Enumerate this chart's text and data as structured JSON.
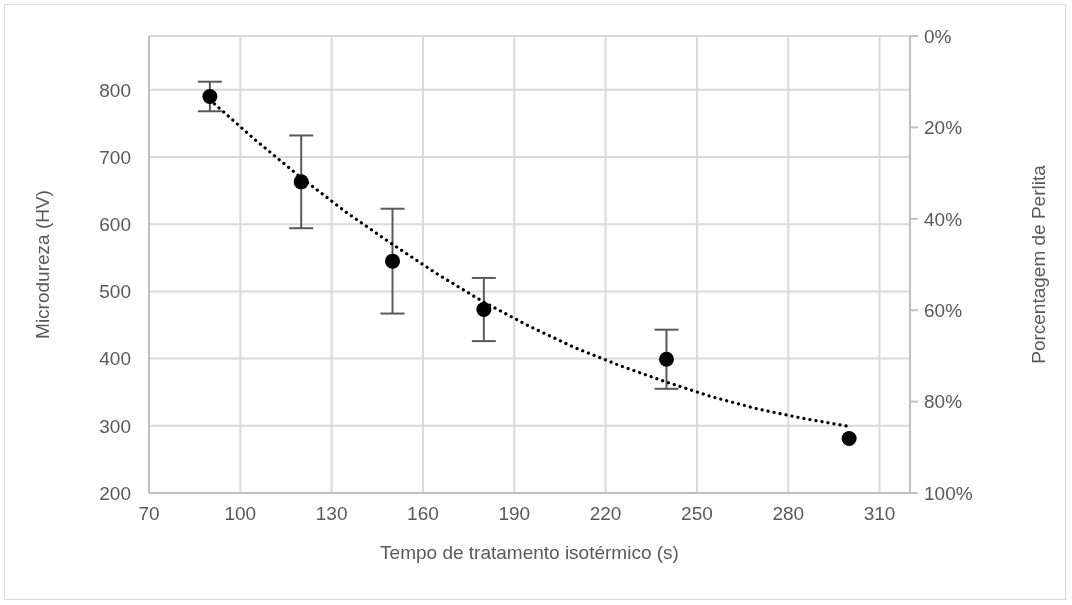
{
  "chart_data": {
    "type": "scatter",
    "xlabel": "Tempo de tratamento isotérmico (s)",
    "ylabel": "Microdureza (HV)",
    "y2label": "Porcentagem de Perlita",
    "x": [
      90,
      120,
      150,
      180,
      240,
      300
    ],
    "series": [
      {
        "type": "scatter",
        "color": "#000000",
        "marker": "circle",
        "values": [
          790,
          663,
          545,
          473,
          399,
          281
        ],
        "errors": [
          22,
          69,
          78,
          47,
          44,
          null
        ]
      },
      {
        "type": "line",
        "color": "#000000",
        "marker": "none",
        "line_style": "dotted",
        "x": [
          90,
          105,
          120,
          135,
          150,
          165,
          180,
          195,
          210,
          225,
          240,
          255,
          270,
          285,
          300
        ],
        "values": [
          785,
          725,
          669,
          617,
          570,
          525,
          484,
          448,
          416,
          389,
          365,
          343,
          325,
          311,
          299
        ]
      }
    ],
    "xlim": [
      70,
      320
    ],
    "xticks": [
      70,
      100,
      130,
      160,
      190,
      220,
      250,
      280,
      310
    ],
    "ylim": [
      200,
      880
    ],
    "yticks": [
      200,
      300,
      400,
      500,
      600,
      700,
      800
    ],
    "y2lim": [
      100,
      0
    ],
    "y2ticks": [
      {
        "value": 0,
        "label": "0%"
      },
      {
        "value": 20,
        "label": "20%"
      },
      {
        "value": 40,
        "label": "40%"
      },
      {
        "value": 60,
        "label": "60%"
      },
      {
        "value": 80,
        "label": "80%"
      },
      {
        "value": 100,
        "label": "100%"
      }
    ],
    "grid": true
  }
}
